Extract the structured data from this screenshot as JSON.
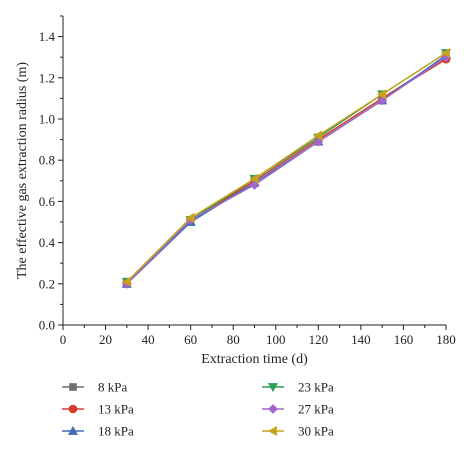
{
  "chart_data": {
    "type": "line",
    "title": "",
    "xlabel": "Extraction time (d)",
    "ylabel": "The effective gas extraction radius (m)",
    "xlim": [
      0,
      180
    ],
    "ylim": [
      0.0,
      1.5
    ],
    "x_ticks": [
      "0",
      "20",
      "40",
      "60",
      "80",
      "100",
      "120",
      "140",
      "160",
      "180"
    ],
    "y_ticks": [
      "0.0",
      "0.2",
      "0.4",
      "0.6",
      "0.8",
      "1.0",
      "1.2",
      "1.4"
    ],
    "grid": false,
    "legend_position": "bottom",
    "x": [
      30,
      60,
      90,
      120,
      150,
      180
    ],
    "series": [
      {
        "name": "8 kPa",
        "marker": "square",
        "color": "#707070",
        "values": [
          0.2,
          0.5,
          0.7,
          0.9,
          1.1,
          1.3
        ]
      },
      {
        "name": "13 kPa",
        "marker": "circle",
        "color": "#d93a2b",
        "values": [
          0.2,
          0.51,
          0.7,
          0.9,
          1.1,
          1.29
        ]
      },
      {
        "name": "18 kPa",
        "marker": "triangle-up",
        "color": "#3f6fb5",
        "values": [
          0.2,
          0.5,
          0.69,
          0.89,
          1.09,
          1.31
        ]
      },
      {
        "name": "23 kPa",
        "marker": "triangle-down",
        "color": "#2e9e58",
        "values": [
          0.21,
          0.51,
          0.71,
          0.91,
          1.12,
          1.32
        ]
      },
      {
        "name": "27 kPa",
        "marker": "diamond",
        "color": "#a267c9",
        "values": [
          0.2,
          0.51,
          0.68,
          0.89,
          1.09,
          1.3
        ]
      },
      {
        "name": "30 kPa",
        "marker": "triangle-left",
        "color": "#c9a21a",
        "values": [
          0.21,
          0.52,
          0.71,
          0.92,
          1.12,
          1.32
        ]
      }
    ]
  }
}
